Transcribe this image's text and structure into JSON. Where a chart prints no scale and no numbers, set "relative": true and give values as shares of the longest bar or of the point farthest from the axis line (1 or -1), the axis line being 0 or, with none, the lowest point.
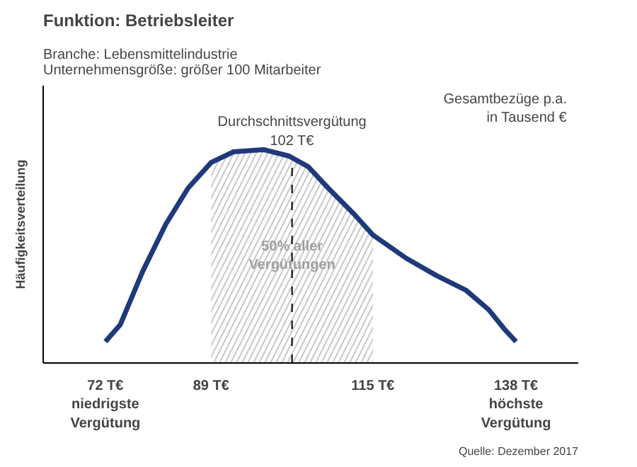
{
  "chart_data": {
    "type": "line",
    "title": "Funktion: Betriebsleiter",
    "subtitle": "Branche: Lebensmittelindustrie\nUnternehmensgröße: größer 100 Mitarbeiter",
    "ylabel": "Häufigkeitsverteilung",
    "relative": true,
    "x": [
      72,
      74.4,
      78.0,
      81.7,
      85.3,
      89.0,
      92.6,
      97.4,
      101.5,
      104.6,
      107.8,
      111.9,
      115.0,
      120.4,
      125.2,
      130.0,
      133.6,
      136.1,
      138.0
    ],
    "series": [
      {
        "color": "#1f3a7a",
        "values": [
          0.1,
          0.18,
          0.43,
          0.65,
          0.82,
          0.94,
          0.99,
          1.0,
          0.97,
          0.92,
          0.82,
          0.7,
          0.6,
          0.49,
          0.41,
          0.34,
          0.25,
          0.16,
          0.1
        ]
      }
    ],
    "xlim": [
      62,
      148
    ],
    "xticks": [
      {
        "value": 72,
        "label": "72 T€\nniedrigste\nVergütung"
      },
      {
        "value": 89,
        "label": "89 T€"
      },
      {
        "value": 115,
        "label": "115 T€"
      },
      {
        "value": 138,
        "label": "138 T€\nhöchste\nVergütung"
      }
    ],
    "bands": [
      {
        "axis": "x",
        "from": 89,
        "to": 115,
        "label": "50% aller\nVergütungen",
        "color": "#c8c8c8"
      }
    ],
    "ref_lines": [
      {
        "axis": "x",
        "value": 102,
        "label": "Durchschnittsvergütung\n102 T€",
        "line_style": "dashed",
        "color": "#000000"
      }
    ],
    "annotations": [
      "Gesamtbezüge p.a.\nin Tausend €",
      "Quelle: Dezember 2017"
    ],
    "grid": false,
    "marker": "none",
    "line_style": "solid"
  }
}
